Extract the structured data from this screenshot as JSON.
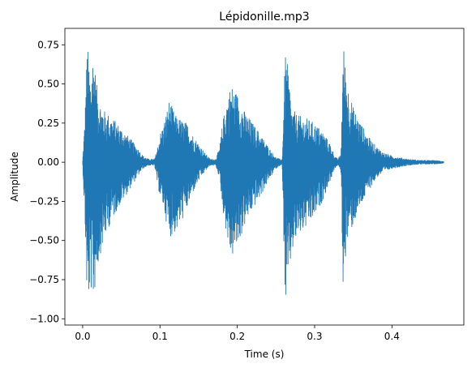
{
  "chart_data": {
    "type": "line",
    "title": "Lépidonille.mp3",
    "xlabel": "Time (s)",
    "ylabel": "Amplitude",
    "xlim": [
      -0.023,
      0.493
    ],
    "ylim": [
      -1.04,
      0.855
    ],
    "x_ticks": [
      0.0,
      0.1,
      0.2,
      0.3,
      0.4
    ],
    "x_tick_labels": [
      "0.0",
      "0.1",
      "0.2",
      "0.3",
      "0.4"
    ],
    "y_ticks": [
      0.75,
      0.5,
      0.25,
      0.0,
      -0.25,
      -0.5,
      -0.75,
      -1.0
    ],
    "y_tick_labels": [
      "0.75",
      "0.50",
      "0.25",
      "0.00",
      "−0.25",
      "−0.50",
      "−0.75",
      "−1.00"
    ],
    "grid": false,
    "legend": "none",
    "series": [
      {
        "color": "#1f77b4",
        "envelope": {
          "t": [
            0.0,
            0.003,
            0.006,
            0.01,
            0.014,
            0.018,
            0.022,
            0.028,
            0.035,
            0.045,
            0.06,
            0.07,
            0.078,
            0.085,
            0.093,
            0.096,
            0.1,
            0.105,
            0.112,
            0.12,
            0.128,
            0.135,
            0.142,
            0.15,
            0.158,
            0.165,
            0.172,
            0.177,
            0.181,
            0.186,
            0.192,
            0.2,
            0.21,
            0.22,
            0.23,
            0.24,
            0.25,
            0.255,
            0.258,
            0.262,
            0.266,
            0.27,
            0.278,
            0.29,
            0.3,
            0.31,
            0.32,
            0.326,
            0.33,
            0.334,
            0.337,
            0.34,
            0.343,
            0.35,
            0.36,
            0.37,
            0.38,
            0.39,
            0.4,
            0.41,
            0.42,
            0.43,
            0.44,
            0.45,
            0.46,
            0.467
          ],
          "upper": [
            0.01,
            0.3,
            0.77,
            0.55,
            0.72,
            0.5,
            0.4,
            0.33,
            0.3,
            0.25,
            0.16,
            0.1,
            0.04,
            0.02,
            0.02,
            0.08,
            0.18,
            0.25,
            0.4,
            0.3,
            0.27,
            0.25,
            0.18,
            0.12,
            0.06,
            0.02,
            0.02,
            0.09,
            0.25,
            0.4,
            0.5,
            0.44,
            0.32,
            0.25,
            0.18,
            0.1,
            0.03,
            0.02,
            0.02,
            0.7,
            0.6,
            0.35,
            0.3,
            0.28,
            0.25,
            0.2,
            0.12,
            0.04,
            0.02,
            0.05,
            0.77,
            0.62,
            0.5,
            0.35,
            0.25,
            0.16,
            0.1,
            0.06,
            0.04,
            0.03,
            0.02,
            0.015,
            0.012,
            0.012,
            0.01,
            0.005
          ],
          "lower": [
            -0.01,
            -0.4,
            -0.96,
            -0.8,
            -0.9,
            -0.72,
            -0.6,
            -0.5,
            -0.4,
            -0.3,
            -0.18,
            -0.1,
            -0.04,
            -0.02,
            -0.02,
            -0.12,
            -0.22,
            -0.3,
            -0.48,
            -0.45,
            -0.38,
            -0.3,
            -0.2,
            -0.12,
            -0.06,
            -0.02,
            -0.02,
            -0.1,
            -0.3,
            -0.46,
            -0.62,
            -0.55,
            -0.4,
            -0.3,
            -0.22,
            -0.12,
            -0.04,
            -0.02,
            -0.02,
            -0.94,
            -0.8,
            -0.6,
            -0.48,
            -0.42,
            -0.35,
            -0.25,
            -0.12,
            -0.04,
            -0.02,
            -0.05,
            -0.84,
            -0.6,
            -0.5,
            -0.4,
            -0.28,
            -0.18,
            -0.1,
            -0.06,
            -0.04,
            -0.03,
            -0.02,
            -0.015,
            -0.012,
            -0.012,
            -0.01,
            -0.005
          ]
        }
      }
    ]
  }
}
